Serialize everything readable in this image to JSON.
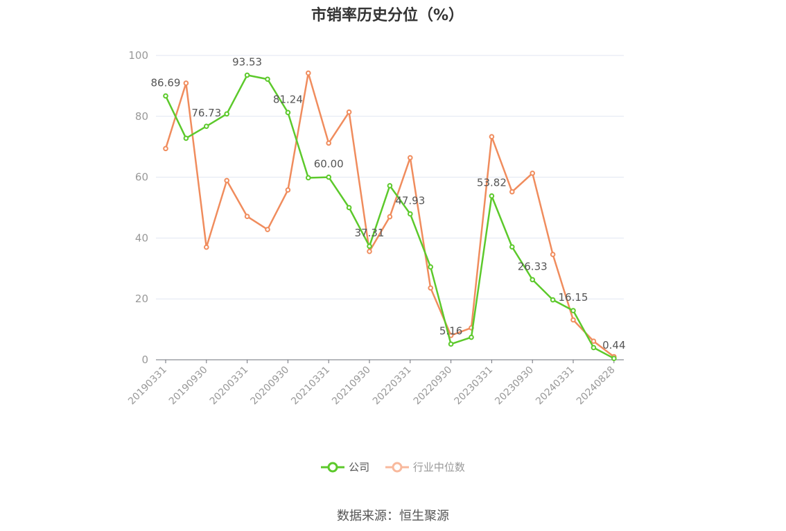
{
  "title": "市销率历史分位（%）",
  "source": "数据来源：恒生聚源",
  "legend": [
    {
      "name": "公司",
      "color": "#5cc92b",
      "muted": false
    },
    {
      "name": "行业中位数",
      "color": "#f8b99d",
      "muted": true
    }
  ],
  "chart_data": {
    "type": "line",
    "ylim": [
      0,
      100
    ],
    "y_ticks": [
      0,
      20,
      40,
      60,
      80,
      100
    ],
    "grid": true,
    "legend_position": "bottom",
    "x_tick_labels": [
      "20190331",
      "20190930",
      "20200331",
      "20200930",
      "20210331",
      "20210930",
      "20220331",
      "20220930",
      "20230331",
      "20230930",
      "20240331",
      "20240828"
    ],
    "x": [
      "20190331",
      "20190630",
      "20190930",
      "20191231",
      "20200331",
      "20200630",
      "20200930",
      "20201231",
      "20210331",
      "20210630",
      "20210930",
      "20211231",
      "20220331",
      "20220630",
      "20220930",
      "20221231",
      "20230331",
      "20230630",
      "20230930",
      "20231231",
      "20240331",
      "20240630",
      "20240828"
    ],
    "series": [
      {
        "name": "公司",
        "color": "#5cc92b",
        "values": [
          86.69,
          72.8,
          76.73,
          80.8,
          93.53,
          92.2,
          81.24,
          59.8,
          60.0,
          50.0,
          37.31,
          57.2,
          47.93,
          30.5,
          5.16,
          7.4,
          53.82,
          37.1,
          26.33,
          19.7,
          16.15,
          4.0,
          0.44
        ],
        "labels": [
          "86.69",
          "",
          "76.73",
          "",
          "93.53",
          "",
          "81.24",
          "",
          "60.00",
          "",
          "37.31",
          "",
          "47.93",
          "",
          "5.16",
          "",
          "53.82",
          "",
          "26.33",
          "",
          "16.15",
          "",
          "0.44"
        ]
      },
      {
        "name": "行业中位数",
        "color": "#f08c5d",
        "values": [
          69.4,
          90.9,
          37.0,
          58.9,
          47.1,
          42.8,
          55.8,
          94.2,
          71.2,
          81.4,
          35.6,
          47.0,
          66.4,
          23.6,
          8.0,
          10.5,
          73.3,
          55.2,
          61.3,
          34.6,
          13.1,
          6.1,
          1.0
        ]
      }
    ]
  }
}
